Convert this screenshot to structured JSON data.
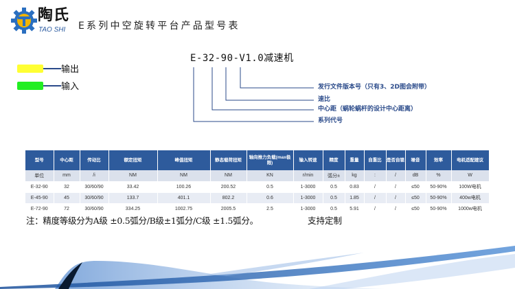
{
  "brand": {
    "name_cn": "陶氏",
    "name_en": "TAO SHI",
    "logo_color": "#f2b400",
    "gear_color": "#2a6fc0"
  },
  "title": "E系列中空旋转平台产品型号表",
  "legend": [
    {
      "label": "输出",
      "color": "#ffff33"
    },
    {
      "label": "输入",
      "color": "#22ee22"
    }
  ],
  "model_code": "E-32-90-V1.0减速机",
  "code_parts": [
    "发行文件版本号（只有3、2D图会附带）",
    "速比",
    "中心距（蜗轮蜗杆的设计中心距离）",
    "系列代号"
  ],
  "table": {
    "headers": [
      "型号",
      "中心距",
      "传动比",
      "额定扭矩",
      "峰值扭矩",
      "静态载荷扭矩",
      "轴向推力负载(max极限)",
      "输入转速",
      "精度",
      "重量",
      "自重比",
      "是否自锁",
      "噪音",
      "效率",
      "电机适配建议"
    ],
    "units": [
      "单位",
      "mm",
      "/i",
      "NM",
      "NM",
      "NM",
      "KN",
      "r/min",
      "弧分±",
      "kg",
      ":",
      "/",
      "dB",
      "%",
      "W"
    ],
    "rows": [
      [
        "E-32-90",
        "32",
        "30/60/90",
        "33.42",
        "100.26",
        "200.52",
        "0.5",
        "1-3000",
        "0.5",
        "0.83",
        "/",
        "/",
        "≤50",
        "50-90%",
        "100W电机"
      ],
      [
        "E-45-90",
        "45",
        "30/60/90",
        "133.7",
        "401.1",
        "802.2",
        "0.6",
        "1-3000",
        "0.5",
        "1.85",
        "/",
        "/",
        "≤50",
        "50-90%",
        "400w电机"
      ],
      [
        "E-72-90",
        "72",
        "30/60/90",
        "334.25",
        "1002.75",
        "2005.5",
        "2.5",
        "1-3000",
        "0.5",
        "5.91",
        "/",
        "/",
        "≤50",
        "50-90%",
        "1000w电机"
      ]
    ],
    "header_color": "#2e5b9c"
  },
  "note": "注：精度等级分为A级 ±0.5弧分/B级±1弧分/C级 ±1.5弧分。",
  "custom": "支持定制"
}
